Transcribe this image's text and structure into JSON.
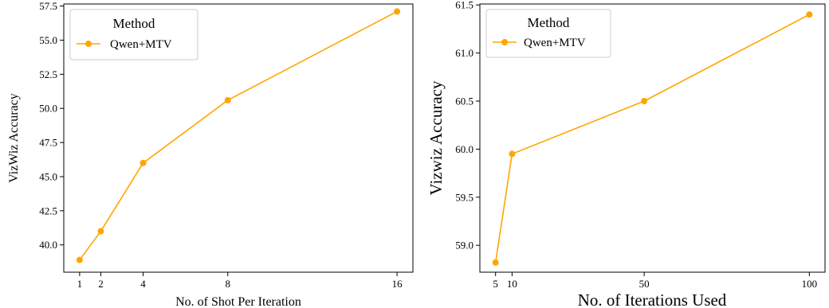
{
  "chart_data": [
    {
      "type": "line",
      "xlabel": "No. of Shot Per Iteration",
      "ylabel": "VizWiz Accuracy",
      "xlim": [
        0.25,
        16.75
      ],
      "ylim": [
        38.0,
        57.65
      ],
      "xticks": [
        1,
        2,
        4,
        8,
        16
      ],
      "xtick_labels": [
        "1",
        "2",
        "4",
        "8",
        "16"
      ],
      "yticks": [
        40.0,
        42.5,
        45.0,
        47.5,
        50.0,
        52.5,
        55.0,
        57.5
      ],
      "ytick_labels": [
        "40.0",
        "42.5",
        "45.0",
        "47.5",
        "50.0",
        "52.5",
        "55.0",
        "57.5"
      ],
      "legend": {
        "title": "Method",
        "position": "top-left"
      },
      "series": [
        {
          "name": "Qwen+MTV",
          "color": "#FFA500",
          "marker": "circle",
          "x": [
            1,
            2,
            4,
            8,
            16
          ],
          "y": [
            38.9,
            41.0,
            46.0,
            50.6,
            57.1
          ]
        }
      ]
    },
    {
      "type": "line",
      "xlabel": "No. of Iterations Used",
      "ylabel": "Vizwiz Accuracy",
      "xlim": [
        0.25,
        104.75
      ],
      "ylim": [
        58.72,
        61.51
      ],
      "xticks": [
        5,
        10,
        50,
        100
      ],
      "xtick_labels": [
        "5",
        "10",
        "50",
        "100"
      ],
      "yticks": [
        59.0,
        59.5,
        60.0,
        60.5,
        61.0,
        61.5
      ],
      "ytick_labels": [
        "59.0",
        "59.5",
        "60.0",
        "60.5",
        "61.0",
        "61.5"
      ],
      "legend": {
        "title": "Method",
        "position": "top-left"
      },
      "series": [
        {
          "name": "Qwen+MTV",
          "color": "#FFA500",
          "marker": "circle",
          "x": [
            5,
            10,
            50,
            100
          ],
          "y": [
            58.82,
            59.95,
            60.5,
            61.4
          ]
        }
      ]
    }
  ]
}
